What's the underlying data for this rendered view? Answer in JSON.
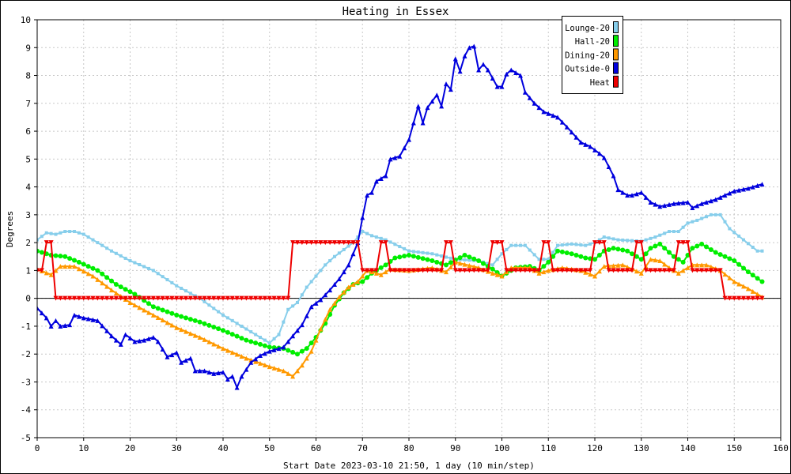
{
  "chart_data": {
    "type": "line",
    "title": "Heating in Essex",
    "ylabel": "Degrees",
    "xlabel": "Start Date 2023-03-10 21:50, 1 day (10 min/step)",
    "xlim": [
      0,
      160
    ],
    "ylim": [
      -5,
      10
    ],
    "x_ticks": [
      "0",
      "10",
      "20",
      "30",
      "40",
      "50",
      "60",
      "70",
      "80",
      "90",
      "100",
      "110",
      "120",
      "130",
      "140",
      "150",
      "160"
    ],
    "y_ticks": [
      "10",
      "9",
      "8",
      "7",
      "6",
      "5",
      "4",
      "3",
      "2",
      "1",
      "0",
      "-1",
      "-2",
      "-3",
      "-4",
      "-5"
    ],
    "grid": true,
    "legend_position": "top-right",
    "series": [
      {
        "name": "Lounge-20",
        "color": "#87ceeb",
        "marker": "square",
        "points": [
          [
            0,
            2.1
          ],
          [
            2,
            2.35
          ],
          [
            4,
            2.3
          ],
          [
            6,
            2.4
          ],
          [
            8,
            2.4
          ],
          [
            10,
            2.3
          ],
          [
            13,
            2.0
          ],
          [
            16,
            1.7
          ],
          [
            20,
            1.35
          ],
          [
            25,
            1.0
          ],
          [
            30,
            0.45
          ],
          [
            35,
            0.0
          ],
          [
            40,
            -0.6
          ],
          [
            45,
            -1.1
          ],
          [
            50,
            -1.6
          ],
          [
            52,
            -1.3
          ],
          [
            54,
            -0.4
          ],
          [
            56,
            -0.15
          ],
          [
            58,
            0.4
          ],
          [
            60,
            0.8
          ],
          [
            62,
            1.2
          ],
          [
            64,
            1.5
          ],
          [
            66,
            1.75
          ],
          [
            68,
            2.0
          ],
          [
            70,
            2.4
          ],
          [
            72,
            2.25
          ],
          [
            75,
            2.1
          ],
          [
            80,
            1.7
          ],
          [
            85,
            1.6
          ],
          [
            90,
            1.4
          ],
          [
            95,
            1.35
          ],
          [
            98,
            1.2
          ],
          [
            100,
            1.6
          ],
          [
            102,
            1.9
          ],
          [
            105,
            1.9
          ],
          [
            108,
            1.4
          ],
          [
            110,
            1.4
          ],
          [
            112,
            1.9
          ],
          [
            115,
            1.95
          ],
          [
            118,
            1.9
          ],
          [
            120,
            2.0
          ],
          [
            122,
            2.2
          ],
          [
            125,
            2.1
          ],
          [
            130,
            2.05
          ],
          [
            133,
            2.2
          ],
          [
            136,
            2.4
          ],
          [
            138,
            2.4
          ],
          [
            140,
            2.7
          ],
          [
            142,
            2.8
          ],
          [
            145,
            3.0
          ],
          [
            147,
            3.0
          ],
          [
            149,
            2.5
          ],
          [
            152,
            2.1
          ],
          [
            155,
            1.7
          ],
          [
            156,
            1.7
          ]
        ]
      },
      {
        "name": "Hall-20",
        "color": "#00ee00",
        "marker": "circle",
        "points": [
          [
            0,
            1.7
          ],
          [
            3,
            1.55
          ],
          [
            6,
            1.5
          ],
          [
            9,
            1.3
          ],
          [
            13,
            1.0
          ],
          [
            17,
            0.5
          ],
          [
            21,
            0.15
          ],
          [
            25,
            -0.3
          ],
          [
            30,
            -0.6
          ],
          [
            35,
            -0.85
          ],
          [
            40,
            -1.15
          ],
          [
            45,
            -1.5
          ],
          [
            50,
            -1.75
          ],
          [
            53,
            -1.8
          ],
          [
            56,
            -2.0
          ],
          [
            58,
            -1.8
          ],
          [
            60,
            -1.4
          ],
          [
            62,
            -0.9
          ],
          [
            64,
            -0.25
          ],
          [
            66,
            0.2
          ],
          [
            68,
            0.5
          ],
          [
            70,
            0.6
          ],
          [
            72,
            0.9
          ],
          [
            75,
            1.2
          ],
          [
            77,
            1.45
          ],
          [
            80,
            1.55
          ],
          [
            85,
            1.35
          ],
          [
            88,
            1.2
          ],
          [
            92,
            1.55
          ],
          [
            95,
            1.35
          ],
          [
            98,
            1.05
          ],
          [
            100,
            0.8
          ],
          [
            103,
            1.1
          ],
          [
            106,
            1.15
          ],
          [
            108,
            1.0
          ],
          [
            110,
            1.3
          ],
          [
            112,
            1.7
          ],
          [
            115,
            1.6
          ],
          [
            118,
            1.45
          ],
          [
            120,
            1.4
          ],
          [
            122,
            1.7
          ],
          [
            124,
            1.8
          ],
          [
            127,
            1.7
          ],
          [
            130,
            1.4
          ],
          [
            132,
            1.8
          ],
          [
            134,
            1.95
          ],
          [
            137,
            1.5
          ],
          [
            139,
            1.3
          ],
          [
            141,
            1.8
          ],
          [
            143,
            1.95
          ],
          [
            146,
            1.65
          ],
          [
            150,
            1.35
          ],
          [
            153,
            0.95
          ],
          [
            156,
            0.6
          ]
        ]
      },
      {
        "name": "Dining-20",
        "color": "#ff9900",
        "marker": "triangle-up",
        "points": [
          [
            0,
            1.05
          ],
          [
            3,
            0.85
          ],
          [
            5,
            1.15
          ],
          [
            8,
            1.15
          ],
          [
            12,
            0.8
          ],
          [
            16,
            0.3
          ],
          [
            20,
            -0.15
          ],
          [
            25,
            -0.6
          ],
          [
            30,
            -1.05
          ],
          [
            35,
            -1.4
          ],
          [
            40,
            -1.8
          ],
          [
            45,
            -2.15
          ],
          [
            50,
            -2.45
          ],
          [
            53,
            -2.6
          ],
          [
            55,
            -2.8
          ],
          [
            57,
            -2.4
          ],
          [
            59,
            -1.9
          ],
          [
            61,
            -1.1
          ],
          [
            63,
            -0.4
          ],
          [
            65,
            0.05
          ],
          [
            67,
            0.4
          ],
          [
            69,
            0.6
          ],
          [
            71,
            1.0
          ],
          [
            74,
            0.85
          ],
          [
            76,
            1.05
          ],
          [
            80,
            1.0
          ],
          [
            85,
            1.1
          ],
          [
            88,
            0.95
          ],
          [
            90,
            1.3
          ],
          [
            95,
            1.1
          ],
          [
            98,
            0.9
          ],
          [
            100,
            0.8
          ],
          [
            102,
            1.1
          ],
          [
            106,
            1.1
          ],
          [
            108,
            0.9
          ],
          [
            110,
            1.0
          ],
          [
            113,
            1.1
          ],
          [
            117,
            1.0
          ],
          [
            120,
            0.8
          ],
          [
            122,
            1.15
          ],
          [
            126,
            1.2
          ],
          [
            128,
            1.05
          ],
          [
            130,
            0.9
          ],
          [
            132,
            1.4
          ],
          [
            134,
            1.35
          ],
          [
            136,
            1.1
          ],
          [
            138,
            0.9
          ],
          [
            141,
            1.2
          ],
          [
            144,
            1.2
          ],
          [
            147,
            1.0
          ],
          [
            150,
            0.6
          ],
          [
            153,
            0.35
          ],
          [
            156,
            0.05
          ]
        ]
      },
      {
        "name": "Outside-0",
        "color": "#0000dd",
        "marker": "triangle-up",
        "points": [
          [
            0,
            -0.35
          ],
          [
            2,
            -0.7
          ],
          [
            3,
            -1.0
          ],
          [
            4,
            -0.8
          ],
          [
            5,
            -1.0
          ],
          [
            7,
            -0.95
          ],
          [
            8,
            -0.6
          ],
          [
            10,
            -0.7
          ],
          [
            13,
            -0.8
          ],
          [
            16,
            -1.35
          ],
          [
            18,
            -1.65
          ],
          [
            19,
            -1.3
          ],
          [
            21,
            -1.55
          ],
          [
            23,
            -1.5
          ],
          [
            25,
            -1.4
          ],
          [
            26,
            -1.55
          ],
          [
            28,
            -2.1
          ],
          [
            30,
            -1.95
          ],
          [
            31,
            -2.3
          ],
          [
            33,
            -2.15
          ],
          [
            34,
            -2.6
          ],
          [
            36,
            -2.6
          ],
          [
            38,
            -2.7
          ],
          [
            40,
            -2.65
          ],
          [
            41,
            -2.9
          ],
          [
            42,
            -2.8
          ],
          [
            43,
            -3.2
          ],
          [
            44,
            -2.8
          ],
          [
            46,
            -2.3
          ],
          [
            48,
            -2.05
          ],
          [
            50,
            -1.9
          ],
          [
            53,
            -1.75
          ],
          [
            55,
            -1.35
          ],
          [
            57,
            -0.95
          ],
          [
            59,
            -0.3
          ],
          [
            61,
            -0.05
          ],
          [
            63,
            0.3
          ],
          [
            65,
            0.7
          ],
          [
            67,
            1.2
          ],
          [
            69,
            2.0
          ],
          [
            70,
            2.9
          ],
          [
            71,
            3.7
          ],
          [
            72,
            3.8
          ],
          [
            73,
            4.2
          ],
          [
            75,
            4.4
          ],
          [
            76,
            5.0
          ],
          [
            78,
            5.1
          ],
          [
            80,
            5.7
          ],
          [
            82,
            6.9
          ],
          [
            83,
            6.3
          ],
          [
            84,
            6.85
          ],
          [
            86,
            7.3
          ],
          [
            87,
            6.9
          ],
          [
            88,
            7.7
          ],
          [
            89,
            7.5
          ],
          [
            90,
            8.6
          ],
          [
            91,
            8.15
          ],
          [
            92,
            8.7
          ],
          [
            93,
            9.0
          ],
          [
            94,
            9.05
          ],
          [
            95,
            8.2
          ],
          [
            96,
            8.4
          ],
          [
            97,
            8.2
          ],
          [
            99,
            7.6
          ],
          [
            100,
            7.6
          ],
          [
            101,
            8.05
          ],
          [
            102,
            8.2
          ],
          [
            104,
            8.0
          ],
          [
            105,
            7.4
          ],
          [
            107,
            7.0
          ],
          [
            109,
            6.7
          ],
          [
            112,
            6.5
          ],
          [
            114,
            6.15
          ],
          [
            117,
            5.6
          ],
          [
            119,
            5.45
          ],
          [
            121,
            5.2
          ],
          [
            122,
            5.05
          ],
          [
            124,
            4.4
          ],
          [
            125,
            3.9
          ],
          [
            127,
            3.7
          ],
          [
            128,
            3.7
          ],
          [
            130,
            3.8
          ],
          [
            132,
            3.45
          ],
          [
            134,
            3.3
          ],
          [
            137,
            3.4
          ],
          [
            140,
            3.45
          ],
          [
            141,
            3.25
          ],
          [
            143,
            3.4
          ],
          [
            146,
            3.55
          ],
          [
            148,
            3.7
          ],
          [
            150,
            3.85
          ],
          [
            153,
            3.95
          ],
          [
            155,
            4.05
          ],
          [
            156,
            4.1
          ]
        ]
      },
      {
        "name": "Heat",
        "color": "#ee0000",
        "marker": "triangle-down",
        "points": [
          [
            0,
            1.0
          ],
          [
            1,
            1.0
          ],
          [
            2,
            2.0
          ],
          [
            3,
            2.0
          ],
          [
            4,
            0.0
          ],
          [
            54,
            0.0
          ],
          [
            55,
            2.0
          ],
          [
            69,
            2.0
          ],
          [
            70,
            1.0
          ],
          [
            73,
            1.0
          ],
          [
            74,
            2.0
          ],
          [
            75,
            2.0
          ],
          [
            76,
            1.0
          ],
          [
            87,
            1.0
          ],
          [
            88,
            2.0
          ],
          [
            89,
            2.0
          ],
          [
            90,
            1.0
          ],
          [
            97,
            1.0
          ],
          [
            98,
            2.0
          ],
          [
            100,
            2.0
          ],
          [
            101,
            1.0
          ],
          [
            108,
            1.0
          ],
          [
            109,
            2.0
          ],
          [
            110,
            2.0
          ],
          [
            111,
            1.0
          ],
          [
            119,
            1.0
          ],
          [
            120,
            2.0
          ],
          [
            122,
            2.0
          ],
          [
            123,
            1.0
          ],
          [
            128,
            1.0
          ],
          [
            129,
            2.0
          ],
          [
            130,
            2.0
          ],
          [
            131,
            1.0
          ],
          [
            137,
            1.0
          ],
          [
            138,
            2.0
          ],
          [
            140,
            2.0
          ],
          [
            141,
            1.0
          ],
          [
            147,
            1.0
          ],
          [
            148,
            0.0
          ],
          [
            156,
            0.0
          ]
        ]
      }
    ]
  }
}
